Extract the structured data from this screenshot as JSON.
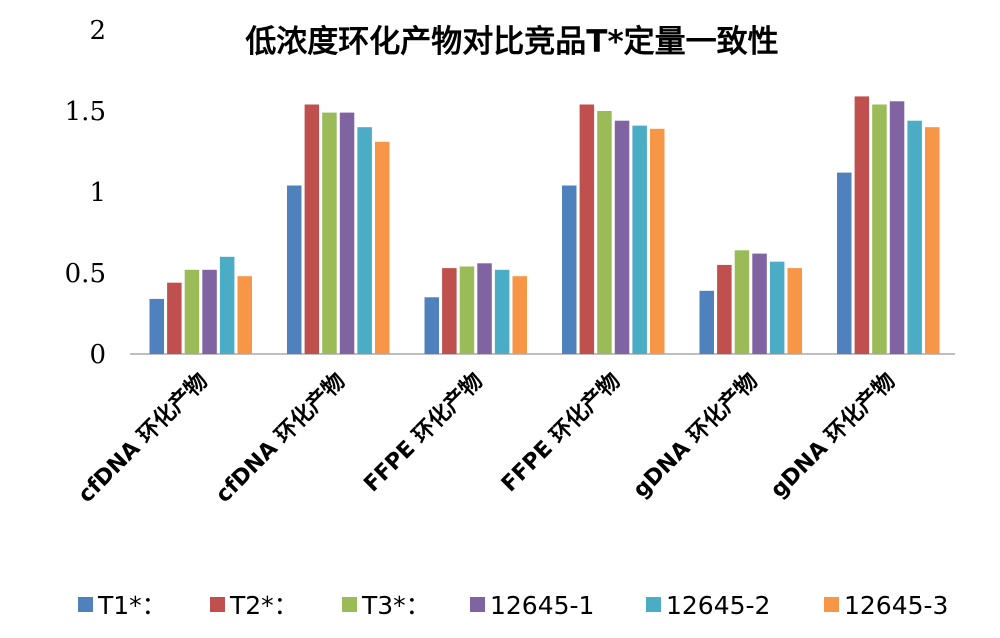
{
  "chart_data": {
    "type": "bar",
    "title": "低浓度环化产物对比竞品T*定量一致性",
    "xlabel": "",
    "ylabel": "",
    "ylim": [
      0,
      2
    ],
    "yticks": [
      "0",
      "0.5",
      "1",
      "1.5",
      "2"
    ],
    "grid": false,
    "legend_position": "bottom",
    "categories": [
      "cfDNA 环化产物",
      "cfDNA 环化产物",
      "FFPE 环化产物",
      "FFPE 环化产物",
      "gDNA 环化产物",
      "gDNA 环化产物"
    ],
    "series": [
      {
        "name": "T1*：",
        "color": "#4f81bd",
        "values": [
          0.34,
          1.04,
          0.35,
          1.04,
          0.39,
          1.12
        ]
      },
      {
        "name": "T2*：",
        "color": "#c0504d",
        "values": [
          0.44,
          1.54,
          0.53,
          1.54,
          0.55,
          1.59
        ]
      },
      {
        "name": "T3*：",
        "color": "#9bbb59",
        "values": [
          0.52,
          1.49,
          0.54,
          1.5,
          0.64,
          1.54
        ]
      },
      {
        "name": "12645-1",
        "color": "#8064a2",
        "values": [
          0.52,
          1.49,
          0.56,
          1.44,
          0.62,
          1.56
        ]
      },
      {
        "name": "12645-2",
        "color": "#4bacc6",
        "values": [
          0.6,
          1.4,
          0.52,
          1.41,
          0.57,
          1.44
        ]
      },
      {
        "name": "12645-3",
        "color": "#f79646",
        "values": [
          0.48,
          1.31,
          0.48,
          1.39,
          0.53,
          1.4
        ]
      }
    ]
  }
}
